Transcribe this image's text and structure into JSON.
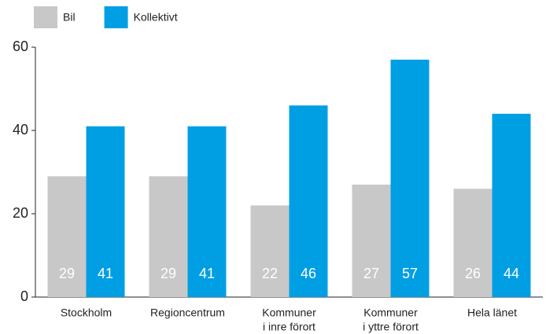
{
  "chart_data": {
    "type": "bar",
    "categories": [
      [
        "Stockholm"
      ],
      [
        "Regioncentrum"
      ],
      [
        "Kommuner",
        "i inre förort"
      ],
      [
        "Kommuner",
        "i yttre förort"
      ],
      [
        "Hela länet"
      ]
    ],
    "series": [
      {
        "name": "Bil",
        "color": "#c8c8c8",
        "values": [
          29,
          29,
          22,
          27,
          26
        ]
      },
      {
        "name": "Kollektivt",
        "color": "#009fe3",
        "values": [
          41,
          41,
          46,
          57,
          44
        ]
      }
    ],
    "ylim": [
      0,
      60
    ],
    "yticks": [
      0,
      20,
      40,
      60
    ],
    "legend": "top-left"
  }
}
